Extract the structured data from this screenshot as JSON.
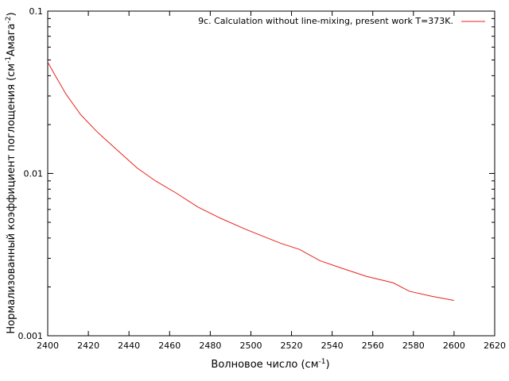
{
  "chart_data": {
    "type": "line",
    "xlabel": "Волновое число (см",
    "xlabel_sup": "-1",
    "xlabel_end": ")",
    "ylabel_parts": {
      "a": "Нормализованный коэффициент поглощения (см",
      "sup1": "-1",
      "b": "Амага",
      "sup2": "-2",
      "c": ")"
    },
    "xlim": [
      2400,
      2620
    ],
    "ylim": [
      0.001,
      0.1
    ],
    "yscale": "log",
    "x_ticks": [
      "2400",
      "2420",
      "2440",
      "2460",
      "2480",
      "2500",
      "2520",
      "2540",
      "2560",
      "2580",
      "2600",
      "2620"
    ],
    "y_ticks": [
      "0.001",
      "0.01",
      "0.1"
    ],
    "grid": false,
    "legend_position": "top-right",
    "series": [
      {
        "name": "9c. Calculation without line-mixing, present work T=373K.",
        "color": "#e8231b",
        "x": [
          2400,
          2404,
          2409,
          2416,
          2424,
          2434,
          2444,
          2453,
          2463,
          2474,
          2485,
          2497,
          2506,
          2515,
          2524,
          2534,
          2545,
          2557,
          2570,
          2578,
          2589,
          2600
        ],
        "y": [
          0.0485,
          0.0395,
          0.0308,
          0.0232,
          0.0182,
          0.014,
          0.0108,
          0.009,
          0.0076,
          0.0062,
          0.0053,
          0.00455,
          0.0041,
          0.0037,
          0.0034,
          0.0029,
          0.0026,
          0.00232,
          0.00212,
          0.00188,
          0.00175,
          0.00165
        ]
      }
    ]
  }
}
